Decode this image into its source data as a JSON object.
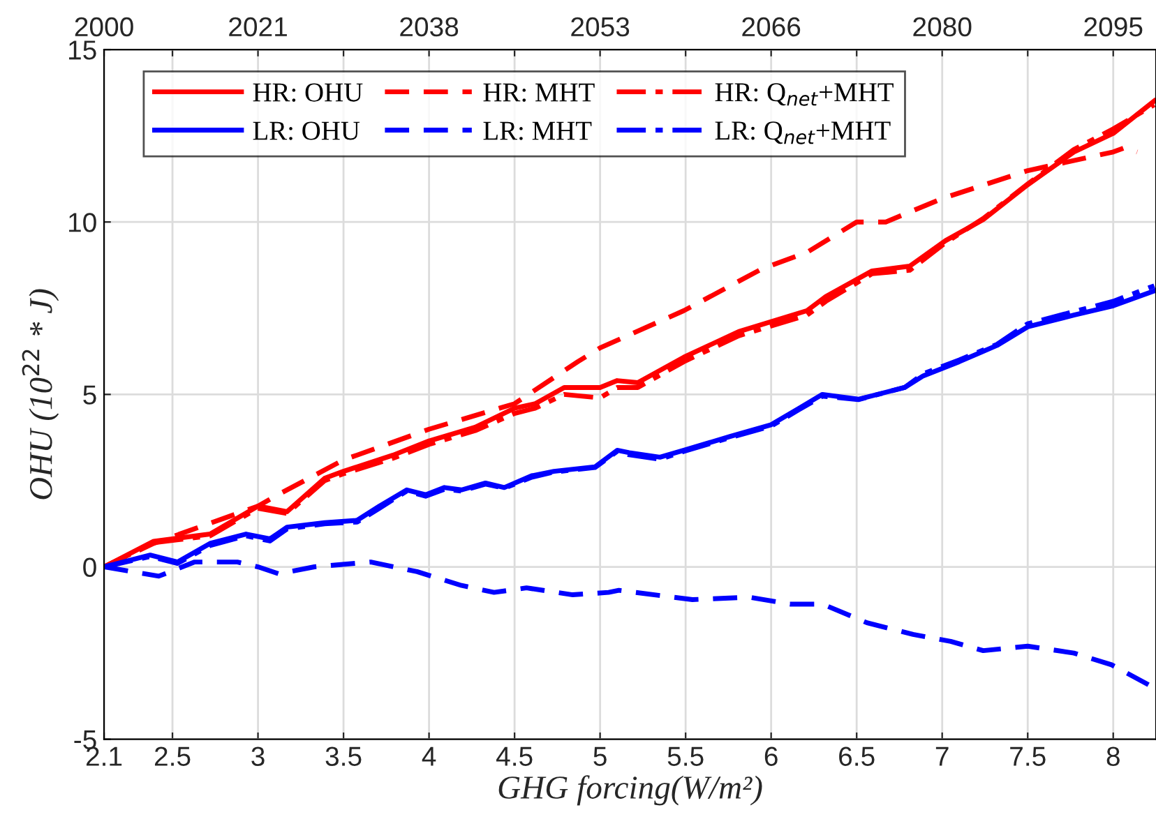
{
  "chart_data": {
    "type": "line",
    "xlabel": "GHG forcing(W/m²)",
    "ylabel": "OHU (10$^{22}$ * J)",
    "xlim": [
      2.1,
      8.25
    ],
    "ylim": [
      -5,
      15
    ],
    "xticks": [
      2.1,
      2.5,
      3,
      3.5,
      4,
      4.5,
      5,
      5.5,
      6,
      6.5,
      7,
      7.5,
      8
    ],
    "yticks": [
      -5,
      0,
      5,
      10,
      15
    ],
    "annotations": [
      "2000",
      "2021",
      "2038",
      "2053",
      "2066",
      "2080",
      "2095"
    ],
    "grid": true,
    "legend": "top left",
    "series": [
      {
        "name": "HR: OHU",
        "color": "#ff0000",
        "line_style": "solid",
        "x": [
          2.1,
          2.39,
          2.72,
          3.0,
          3.17,
          3.39,
          3.5,
          3.79,
          4.0,
          4.27,
          4.5,
          4.62,
          4.79,
          5.0,
          5.1,
          5.22,
          5.49,
          5.81,
          6.21,
          6.32,
          6.59,
          6.81,
          7.02,
          7.24,
          7.5,
          7.77,
          8.0,
          8.24
        ],
        "values": [
          0,
          0.74,
          0.95,
          1.76,
          1.6,
          2.57,
          2.77,
          3.24,
          3.65,
          4.05,
          4.6,
          4.73,
          5.2,
          5.2,
          5.4,
          5.34,
          6.08,
          6.82,
          7.43,
          7.84,
          8.58,
          8.72,
          9.46,
          10.07,
          11.08,
          12.03,
          12.57,
          13.51
        ]
      },
      {
        "name": "HR: MHT",
        "color": "#ff0000",
        "line_style": "dashed",
        "x": [
          2.1,
          2.39,
          3.0,
          3.12,
          3.5,
          4.0,
          4.5,
          4.87,
          5.0,
          5.49,
          5.95,
          6.21,
          6.5,
          6.67,
          7.0,
          7.5,
          8.0,
          8.07,
          8.14
        ],
        "values": [
          0,
          0.68,
          1.76,
          2.1,
          3.1,
          3.99,
          4.73,
          5.95,
          6.35,
          7.43,
          8.65,
          9.12,
          10.0,
          10.0,
          10.68,
          11.49,
          12.03,
          12.16,
          12.03
        ]
      },
      {
        "name": "HR: Q$_{net}$+MHT",
        "color": "#ff0000",
        "line_style": "dashdot",
        "x": [
          2.1,
          2.39,
          2.72,
          3.0,
          3.17,
          3.39,
          3.5,
          3.79,
          4.0,
          4.27,
          4.5,
          4.62,
          4.79,
          5.0,
          5.1,
          5.22,
          5.49,
          5.81,
          6.21,
          6.32,
          6.59,
          6.81,
          7.02,
          7.24,
          7.5,
          7.77,
          8.0,
          8.24
        ],
        "values": [
          0,
          0.7,
          0.9,
          1.7,
          1.55,
          2.5,
          2.7,
          3.15,
          3.55,
          3.95,
          4.45,
          4.6,
          5.0,
          4.9,
          5.2,
          5.2,
          5.95,
          6.7,
          7.3,
          7.7,
          8.5,
          8.6,
          9.4,
          10.1,
          11.1,
          12.1,
          12.7,
          13.4
        ]
      },
      {
        "name": "LR: OHU",
        "color": "#0000ff",
        "line_style": "solid",
        "x": [
          2.1,
          2.37,
          2.53,
          2.72,
          2.93,
          3.07,
          3.17,
          3.39,
          3.58,
          3.71,
          3.87,
          3.98,
          4.09,
          4.19,
          4.33,
          4.44,
          4.6,
          4.73,
          4.97,
          5.1,
          5.17,
          5.35,
          5.49,
          5.76,
          6.0,
          6.16,
          6.3,
          6.51,
          6.78,
          6.89,
          7.1,
          7.32,
          7.5,
          7.77,
          8.0,
          8.24
        ],
        "values": [
          0,
          0.34,
          0.14,
          0.68,
          0.95,
          0.81,
          1.15,
          1.28,
          1.35,
          1.76,
          2.23,
          2.09,
          2.3,
          2.23,
          2.43,
          2.3,
          2.64,
          2.77,
          2.9,
          3.38,
          3.31,
          3.18,
          3.38,
          3.78,
          4.12,
          4.59,
          5.0,
          4.86,
          5.2,
          5.54,
          5.95,
          6.42,
          6.96,
          7.3,
          7.57,
          8.0
        ]
      },
      {
        "name": "LR: MHT",
        "color": "#0000ff",
        "line_style": "dashed",
        "x": [
          2.1,
          2.42,
          2.63,
          2.88,
          3.0,
          3.12,
          3.33,
          3.66,
          3.93,
          4.19,
          4.38,
          4.57,
          4.84,
          5.05,
          5.11,
          5.54,
          5.87,
          6.11,
          6.3,
          6.56,
          6.83,
          7.05,
          7.24,
          7.5,
          7.77,
          7.99,
          8.24
        ],
        "values": [
          0,
          -0.27,
          0.14,
          0.14,
          0,
          -0.2,
          0,
          0.14,
          -0.14,
          -0.54,
          -0.74,
          -0.61,
          -0.81,
          -0.74,
          -0.68,
          -0.95,
          -0.88,
          -1.08,
          -1.08,
          -1.62,
          -1.96,
          -2.16,
          -2.43,
          -2.3,
          -2.5,
          -2.84,
          -3.51
        ]
      },
      {
        "name": "LR: Q$_{net}$+MHT",
        "color": "#0000ff",
        "line_style": "dashdot",
        "x": [
          2.1,
          2.37,
          2.53,
          2.72,
          2.93,
          3.07,
          3.17,
          3.39,
          3.58,
          3.71,
          3.87,
          3.98,
          4.09,
          4.19,
          4.33,
          4.44,
          4.6,
          4.73,
          4.97,
          5.1,
          5.17,
          5.35,
          5.49,
          5.76,
          6.0,
          6.16,
          6.3,
          6.51,
          6.78,
          6.89,
          7.1,
          7.32,
          7.5,
          7.77,
          8.0,
          8.24
        ],
        "values": [
          0,
          0.3,
          0.1,
          0.62,
          0.9,
          0.75,
          1.1,
          1.25,
          1.3,
          1.7,
          2.2,
          2.05,
          2.25,
          2.2,
          2.4,
          2.28,
          2.6,
          2.75,
          2.88,
          3.35,
          3.25,
          3.12,
          3.35,
          3.75,
          4.08,
          4.55,
          4.95,
          4.85,
          5.2,
          5.6,
          6.0,
          6.45,
          7.05,
          7.4,
          7.7,
          8.15
        ]
      }
    ]
  }
}
